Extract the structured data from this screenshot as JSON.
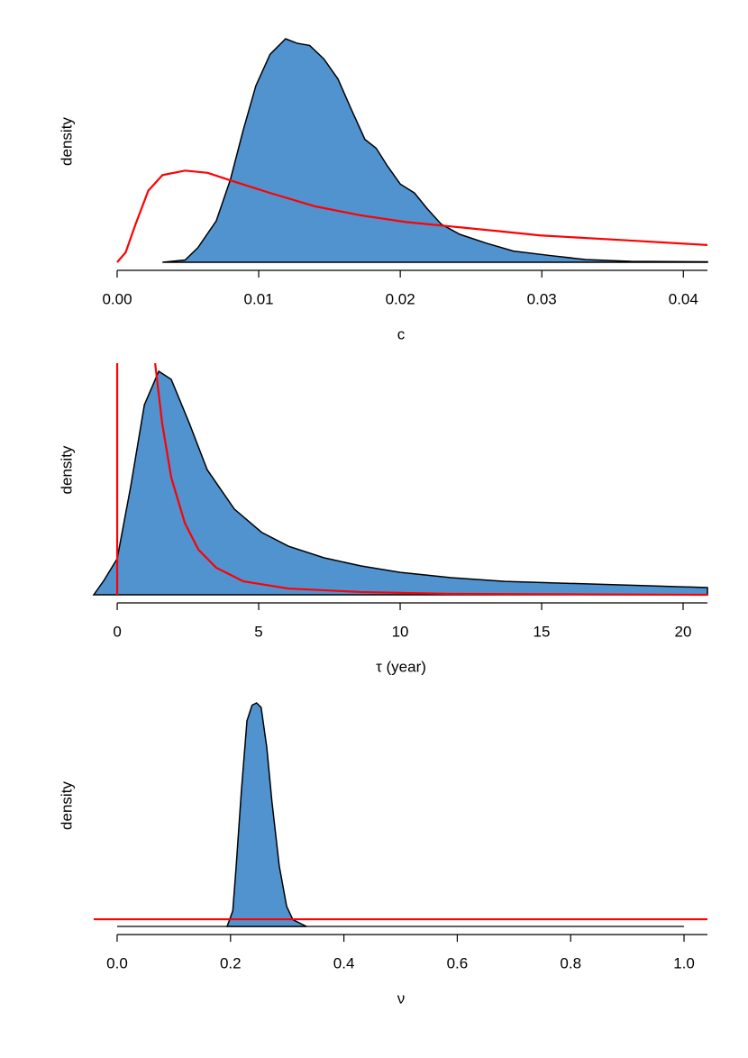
{
  "chart_data": [
    {
      "type": "area",
      "xlabel": "c",
      "ylabel": "density",
      "xlim": [
        0,
        0.0417
      ],
      "ylim": [
        0,
        100
      ],
      "xticks": [
        {
          "value": 0,
          "label": "0.00"
        },
        {
          "value": 0.01,
          "label": "0.01"
        },
        {
          "value": 0.02,
          "label": "0.02"
        },
        {
          "value": 0.03,
          "label": "0.03"
        },
        {
          "value": 0.04,
          "label": "0.04"
        }
      ],
      "series": [
        {
          "color": "#000000",
          "fill": "#5093cf",
          "x": [
            0.0032,
            0.0048,
            0.0057,
            0.007,
            0.008,
            0.0089,
            0.0098,
            0.0108,
            0.0119,
            0.0127,
            0.0136,
            0.0146,
            0.0156,
            0.0165,
            0.0175,
            0.0183,
            0.0191,
            0.02,
            0.021,
            0.0219,
            0.0229,
            0.0242,
            0.0261,
            0.028,
            0.0306,
            0.0331,
            0.0363,
            0.0417
          ],
          "values": [
            0,
            1,
            6.5,
            18.5,
            37,
            59,
            79,
            93,
            100,
            98,
            97,
            91,
            82,
            69,
            55,
            51,
            43,
            35,
            31,
            24,
            17,
            12.5,
            8.5,
            5,
            3,
            1.2,
            0.4,
            0.2
          ]
        },
        {
          "color": "#ff0000",
          "x": [
            0,
            0.0006,
            0.0013,
            0.0022,
            0.0032,
            0.0048,
            0.0064,
            0.0083,
            0.0108,
            0.014,
            0.0172,
            0.0204,
            0.0236,
            0.0268,
            0.0299,
            0.0363,
            0.0417
          ],
          "values": [
            0,
            4.4,
            17,
            32,
            39,
            41,
            40,
            36,
            31,
            25,
            21,
            18,
            16,
            14,
            12,
            9.7,
            7.7
          ]
        }
      ]
    },
    {
      "type": "area",
      "xlabel": "τ (year)",
      "ylabel": "density",
      "xlim": [
        -0.83,
        20.86
      ],
      "ylim": [
        0,
        100
      ],
      "xticks": [
        0,
        5,
        10,
        15,
        20
      ],
      "vlines": [
        0
      ],
      "vline_color": "#ff0000",
      "series": [
        {
          "color": "#000000",
          "fill": "#5093cf",
          "x": [
            -0.83,
            -0.48,
            0,
            0.48,
            0.96,
            1.47,
            1.91,
            2.55,
            3.18,
            4.14,
            5.1,
            6.05,
            7.3,
            8.6,
            10,
            11.8,
            13.7,
            16.6,
            18.8,
            20.86
          ],
          "values": [
            0,
            6,
            15.6,
            47,
            82,
            96.5,
            93,
            74,
            54,
            37,
            27,
            21,
            16,
            12.5,
            9.7,
            7.4,
            5.8,
            4.7,
            3.9,
            3.1
          ]
        },
        {
          "color": "#ff0000",
          "x": [
            1.34,
            1.59,
            1.91,
            2.39,
            2.87,
            3.5,
            4.46,
            6.05,
            8.6,
            11.8,
            20.86
          ],
          "values": [
            100,
            74,
            50.6,
            31,
            19.5,
            11.7,
            5.8,
            2.7,
            1.2,
            0.4,
            0
          ]
        }
      ]
    },
    {
      "type": "area",
      "xlabel": "ν",
      "ylabel": "density",
      "xlim": [
        -0.0413,
        1.0413
      ],
      "ylim": [
        0,
        100
      ],
      "xticks": [
        {
          "value": 0,
          "label": "0.0"
        },
        0.2,
        0.4,
        0.6,
        0.8,
        {
          "value": 1,
          "label": "1.0"
        }
      ],
      "series": [
        {
          "color": "#000000",
          "fill": "#5093cf",
          "x": [
            0.194,
            0.204,
            0.21,
            0.219,
            0.229,
            0.238,
            0.246,
            0.254,
            0.264,
            0.273,
            0.286,
            0.299,
            0.31,
            0.334
          ],
          "values": [
            0,
            7,
            27,
            60,
            92,
            99,
            100,
            98,
            80,
            56,
            27,
            9,
            3,
            0
          ]
        },
        {
          "color": "#ff0000",
          "x": [
            -0.0413,
            1.0413
          ],
          "values": [
            3.2,
            3.2
          ]
        }
      ]
    }
  ]
}
